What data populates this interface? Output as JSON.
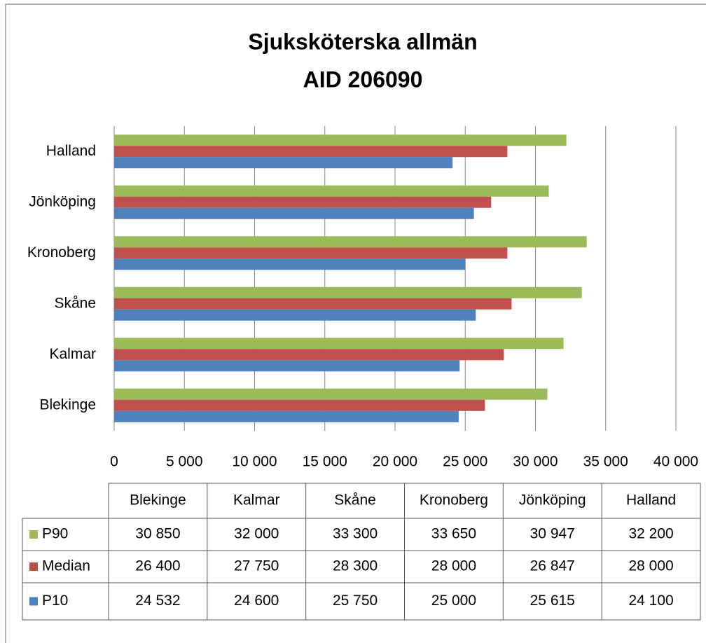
{
  "chart_data": {
    "type": "barh",
    "title": "Sjuksköterska allmän",
    "subtitle": "AID 206090",
    "categories": [
      "Blekinge",
      "Kalmar",
      "Skåne",
      "Kronoberg",
      "Jönköping",
      "Halland"
    ],
    "series": [
      {
        "name": "P90",
        "color": "#9bbb59",
        "values": [
          30850,
          32000,
          33300,
          33650,
          30947,
          32200
        ],
        "value_labels": [
          "30 850",
          "32 000",
          "33 300",
          "33 650",
          "30 947",
          "32 200"
        ]
      },
      {
        "name": "Median",
        "color": "#c0504d",
        "values": [
          26400,
          27750,
          28300,
          28000,
          26847,
          28000
        ],
        "value_labels": [
          "26 400",
          "27 750",
          "28 300",
          "28 000",
          "26 847",
          "28 000"
        ]
      },
      {
        "name": "P10",
        "color": "#4f81bd",
        "values": [
          24532,
          24600,
          25750,
          25000,
          25615,
          24100
        ],
        "value_labels": [
          "24 532",
          "24 600",
          "25 750",
          "25 000",
          "25 615",
          "24 100"
        ]
      }
    ],
    "xlim": [
      0,
      40000
    ],
    "xticks": [
      0,
      {
        "value": 5000,
        "label": "5 000"
      },
      {
        "value": 10000,
        "label": "10 000"
      },
      {
        "value": 15000,
        "label": "15 000"
      },
      {
        "value": 20000,
        "label": "20 000"
      },
      {
        "value": 25000,
        "label": "25 000"
      },
      {
        "value": 30000,
        "label": "30 000"
      },
      {
        "value": 35000,
        "label": "35 000"
      },
      {
        "value": 40000,
        "label": "40 000"
      }
    ],
    "grid": true
  }
}
